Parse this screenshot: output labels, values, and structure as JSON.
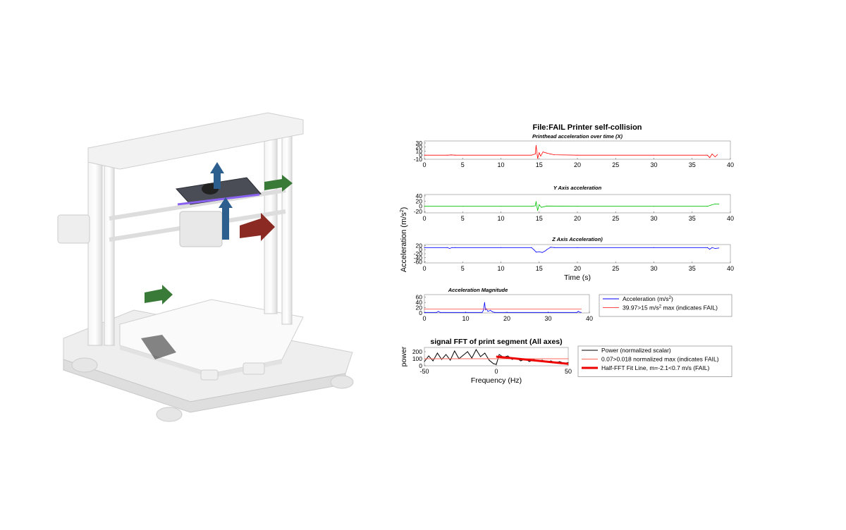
{
  "printer_image": {
    "description_icon": "3d-printer-icon",
    "axis_arrow_colors": {
      "x": "#8a2a22",
      "y": "#3a7a38",
      "z": "#2d5f8e"
    }
  },
  "figure_title": "File:FAIL Printer self-collision",
  "shared_ylabel": "Acceleration (m/s",
  "shared_ylabel_sup": "2",
  "shared_ylabel_end": ")",
  "chart_data": [
    {
      "type": "line",
      "title": "Printhead acceleration over time (X)",
      "xlabel": "",
      "xlim": [
        0,
        40
      ],
      "ylim": [
        -10,
        35
      ],
      "xticks": [
        "0",
        "5",
        "10",
        "15",
        "20",
        "25",
        "30",
        "35",
        "40"
      ],
      "yticks": [
        "30",
        "20",
        "10",
        "0",
        "-10"
      ],
      "color": "#ff0000",
      "series": [
        {
          "x": [
            0,
            3,
            3.5,
            4,
            14,
            14.5,
            14.6,
            14.8,
            15,
            15.2,
            15.5,
            16,
            16.5,
            17,
            20,
            30,
            37,
            37.3,
            37.6,
            38,
            38.3
          ],
          "y": [
            0,
            0,
            0.8,
            0,
            0,
            3,
            24,
            -8,
            6,
            -2,
            8,
            5,
            3,
            1,
            0,
            0,
            0,
            -6,
            3,
            -4,
            1
          ]
        }
      ]
    },
    {
      "type": "line",
      "title": "Y Axis acceleration",
      "xlabel": "",
      "xlim": [
        0,
        40
      ],
      "ylim": [
        -25,
        45
      ],
      "xticks": [
        "0",
        "5",
        "10",
        "15",
        "20",
        "25",
        "30",
        "35",
        "40"
      ],
      "yticks": [
        "40",
        "20",
        "0",
        "-20"
      ],
      "color": "#00c000",
      "series": [
        {
          "x": [
            0,
            5,
            10,
            14,
            14.5,
            14.6,
            14.8,
            15,
            15.3,
            16,
            20,
            30,
            37,
            37.5,
            38,
            38.5
          ],
          "y": [
            0,
            0,
            0,
            0,
            2,
            18,
            -16,
            6,
            -4,
            1,
            0,
            0,
            0,
            5,
            9,
            8
          ]
        }
      ]
    },
    {
      "type": "line",
      "title": "Z Axis Acceleration)",
      "xlabel": "Time (s)",
      "xlim": [
        0,
        40
      ],
      "ylim": [
        -65,
        25
      ],
      "xticks": [
        "0",
        "5",
        "10",
        "15",
        "20",
        "25",
        "30",
        "35",
        "40"
      ],
      "yticks": [
        "20",
        "0",
        "-20",
        "-40",
        "-60"
      ],
      "color": "#0000ff",
      "series": [
        {
          "x": [
            0,
            3,
            3.3,
            3.6,
            4,
            10,
            14,
            14.3,
            14.6,
            15,
            15.4,
            15.8,
            16,
            16.5,
            17,
            20,
            30,
            37,
            37.3,
            37.6,
            38,
            38.5
          ],
          "y": [
            10,
            10,
            6,
            10,
            10,
            10,
            10,
            0,
            -12,
            -10,
            -14,
            -6,
            0,
            12,
            10,
            10,
            10,
            10,
            2,
            10,
            6,
            8
          ]
        }
      ]
    },
    {
      "type": "line",
      "title": "Acceleration Magnitude",
      "xlabel": "",
      "xlim": [
        0,
        40
      ],
      "ylim": [
        0,
        70
      ],
      "xticks": [
        "0",
        "10",
        "20",
        "30",
        "40"
      ],
      "yticks": [
        "60",
        "40",
        "20",
        "0"
      ],
      "threshold": 15,
      "series": [
        {
          "name": "Acceleration (m/s",
          "name_sup": "2",
          "name_end": ")",
          "color": "#0000ff",
          "x": [
            0,
            3,
            3.4,
            3.8,
            10,
            14,
            14.3,
            14.6,
            14.8,
            15,
            15.4,
            16,
            16.5,
            17,
            30,
            37,
            37.3,
            37.6,
            38
          ],
          "y": [
            2,
            2,
            6,
            2,
            2,
            2,
            10,
            40,
            12,
            16,
            6,
            10,
            4,
            2,
            2,
            2,
            6,
            3,
            2
          ]
        },
        {
          "name": "39.97>15 m/s",
          "name_sup": "2",
          "name_end": " max (indicates FAIL)",
          "color": "#ff4444",
          "x": [
            0,
            38
          ],
          "y": [
            15,
            15
          ]
        }
      ]
    },
    {
      "type": "line",
      "title": "signal FFT of print segment (All axes)",
      "xlabel": "Frequency (Hz)",
      "ylabel": "power",
      "xlim": [
        -50,
        50
      ],
      "ylim": [
        0,
        260
      ],
      "xticks": [
        "-50",
        "0",
        "50"
      ],
      "yticks": [
        "200",
        "100",
        "0"
      ],
      "series": [
        {
          "name": "Power (normalized scalar)",
          "color": "#000000",
          "line_width": 1,
          "x": [
            -50,
            -47,
            -44,
            -41,
            -38,
            -35,
            -32,
            -29,
            -26,
            -23,
            -20,
            -17,
            -14,
            -11,
            -8,
            -5,
            -2,
            0,
            2,
            5,
            8,
            11,
            14,
            17,
            20,
            23,
            26,
            29,
            32,
            35,
            38,
            41,
            44,
            47,
            50
          ],
          "y": [
            60,
            140,
            70,
            180,
            90,
            160,
            80,
            210,
            100,
            150,
            200,
            110,
            230,
            130,
            180,
            80,
            30,
            20,
            160,
            120,
            140,
            90,
            110,
            70,
            100,
            60,
            90,
            70,
            80,
            50,
            70,
            40,
            60,
            35,
            45
          ]
        },
        {
          "name": "0.07>0.018 normalized max (indicates FAIL)",
          "color": "#ff6b5b",
          "line_width": 1,
          "x": [
            -50,
            50
          ],
          "y": [
            100,
            100
          ]
        },
        {
          "name": "Half-FFT Fit Line, m=-2.1<0.7 m/s (FAIL)",
          "color": "#ee0000",
          "line_width": 3,
          "x": [
            0,
            50
          ],
          "y": [
            130,
            28
          ]
        }
      ]
    }
  ]
}
